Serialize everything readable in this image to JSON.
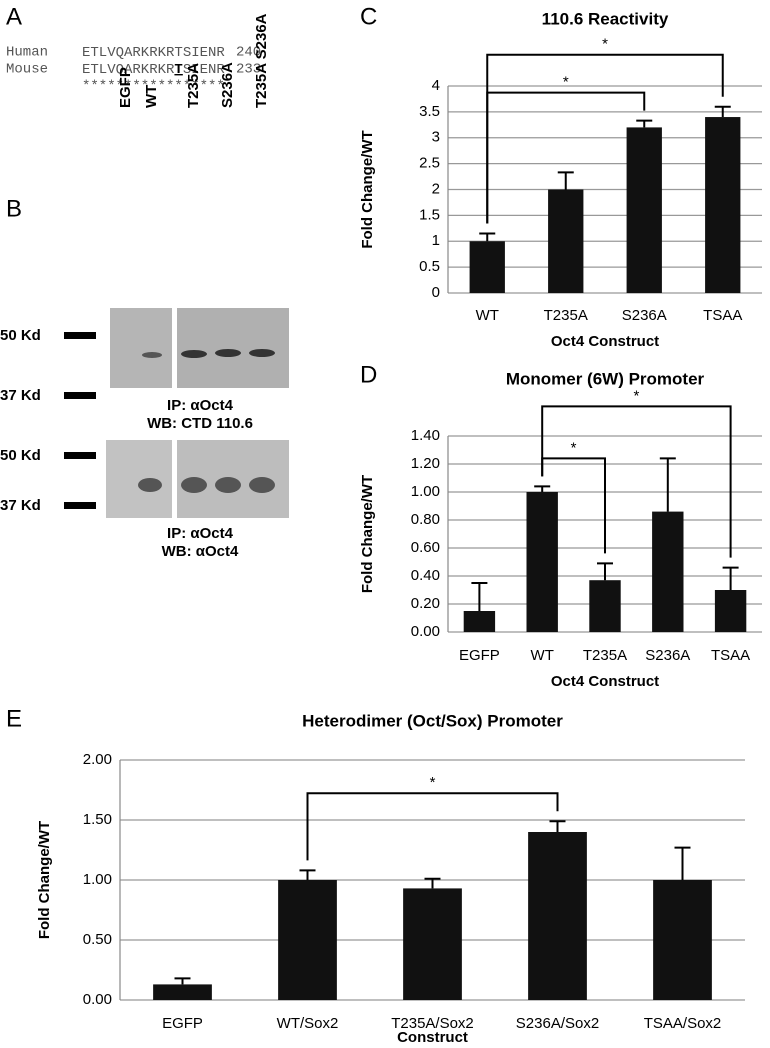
{
  "panel_a": {
    "letter": "A",
    "rows": [
      {
        "species": "Human",
        "parts": [
          "ETLVQARKRKRTSIENR"
        ],
        "number": "240"
      },
      {
        "species": "Mouse",
        "parts": [
          "ETLVQARKRKR",
          "T",
          "SIENR"
        ],
        "number": "233"
      }
    ],
    "conservation": "*****************"
  },
  "panel_b": {
    "letter": "B",
    "lanes": [
      "EGFP",
      "WT",
      "T235A",
      "S236A",
      "T235A S236A"
    ],
    "blots": [
      {
        "markers": [
          "50 Kd",
          "37 Kd"
        ],
        "caption": [
          "IP: αOct4",
          "WB: CTD 110.6"
        ]
      },
      {
        "markers": [
          "50 Kd",
          "37 Kd"
        ],
        "caption": [
          "IP: αOct4",
          "WB: αOct4"
        ]
      }
    ]
  },
  "chart_data": [
    {
      "type": "bar",
      "panel": "C",
      "title": "110.6 Reactivity",
      "x_label": "Oct4 Construct",
      "y_label": "Fold Change/WT",
      "categories": [
        "WT",
        "T235A",
        "S236A",
        "TSAA"
      ],
      "values": [
        1.0,
        2.0,
        3.2,
        3.4
      ],
      "errors": [
        0.15,
        0.33,
        0.13,
        0.2
      ],
      "color": "#111111",
      "ylim": [
        0,
        4
      ],
      "yticks": [
        0,
        0.5,
        1,
        1.5,
        2,
        2.5,
        3,
        3.5,
        4
      ],
      "grid": true,
      "brackets": [
        {
          "from": 0,
          "to": 2,
          "label": "*"
        },
        {
          "from": 0,
          "to": 3,
          "label": "*"
        }
      ]
    },
    {
      "type": "bar",
      "panel": "D",
      "title": "Monomer (6W) Promoter",
      "x_label": "Oct4 Construct",
      "y_label": "Fold Change/WT",
      "categories": [
        "EGFP",
        "WT",
        "T235A",
        "S236A",
        "TSAA"
      ],
      "values": [
        0.15,
        1.0,
        0.37,
        0.86,
        0.3
      ],
      "errors": [
        0.2,
        0.04,
        0.12,
        0.38,
        0.16
      ],
      "color": "#111111",
      "ylim": [
        0,
        1.4
      ],
      "yticks": [
        {
          "value": 0,
          "label": "0.00"
        },
        {
          "value": 0.2,
          "label": "0.20"
        },
        {
          "value": 0.4,
          "label": "0.40"
        },
        {
          "value": 0.6,
          "label": "0.60"
        },
        {
          "value": 0.8,
          "label": "0.80"
        },
        {
          "value": 1.0,
          "label": "1.00"
        },
        {
          "value": 1.2,
          "label": "1.20"
        },
        {
          "value": 1.4,
          "label": "1.40"
        }
      ],
      "grid": true,
      "brackets": [
        {
          "from": 1,
          "to": 2,
          "label": "*"
        },
        {
          "from": 1,
          "to": 4,
          "label": "*"
        }
      ]
    },
    {
      "type": "bar",
      "panel": "E",
      "title": "Heterodimer (Oct/Sox) Promoter",
      "x_label": "Construct",
      "y_label": "Fold Change/WT",
      "categories": [
        "EGFP",
        "WT/Sox2",
        "T235A/Sox2",
        "S236A/Sox2",
        "TSAA/Sox2"
      ],
      "values": [
        0.13,
        1.0,
        0.93,
        1.4,
        1.0
      ],
      "errors": [
        0.05,
        0.08,
        0.08,
        0.09,
        0.27
      ],
      "color": "#111111",
      "ylim": [
        0,
        2
      ],
      "yticks": [
        {
          "value": 0,
          "label": "0.00"
        },
        {
          "value": 0.5,
          "label": "0.50"
        },
        {
          "value": 1.0,
          "label": "1.00"
        },
        {
          "value": 1.5,
          "label": "1.50"
        },
        {
          "value": 2.0,
          "label": "2.00"
        }
      ],
      "grid": true,
      "brackets": [
        {
          "from": 1,
          "to": 3,
          "label": "*"
        }
      ]
    }
  ]
}
